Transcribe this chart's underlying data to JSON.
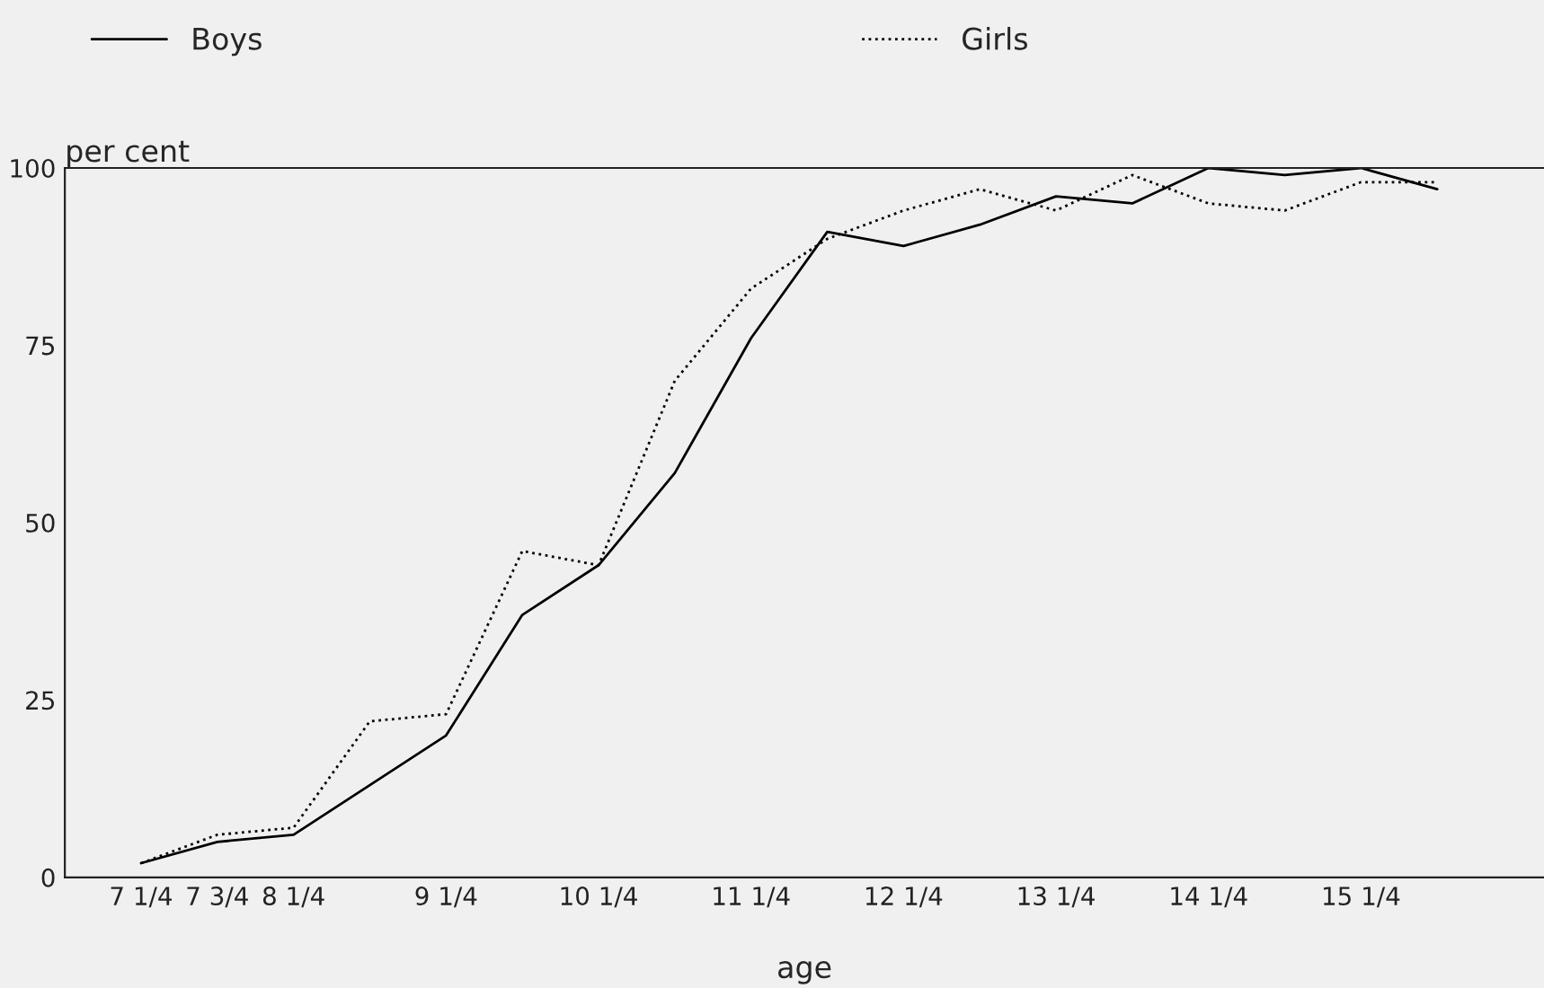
{
  "chart_data": {
    "type": "line",
    "xlabel": "age",
    "ylabel": "per cent",
    "categories": [
      "7 1/4",
      "7 3/4",
      "8 1/4",
      null,
      "9 1/4",
      null,
      "10 1/4",
      null,
      "11 1/4",
      null,
      "12 1/4",
      null,
      "13 1/4",
      null,
      "14 1/4",
      null,
      "15 1/4",
      null
    ],
    "series": [
      {
        "name": "Boys",
        "color": "#000000",
        "line_style": "solid",
        "values": [
          2,
          5,
          6,
          13,
          20,
          37,
          44,
          57,
          76,
          91,
          89,
          92,
          96,
          95,
          100,
          99,
          100,
          97
        ]
      },
      {
        "name": "Girls",
        "color": "#000000",
        "line_style": "dotted",
        "values": [
          2,
          6,
          7,
          22,
          23,
          46,
          44,
          70,
          83,
          90,
          94,
          97,
          94,
          99,
          95,
          94,
          98,
          98
        ]
      }
    ],
    "ylim": [
      0,
      100
    ],
    "yticks": [
      0,
      25,
      50,
      75,
      100
    ],
    "grid": false,
    "legend": "top",
    "marker": "none"
  }
}
